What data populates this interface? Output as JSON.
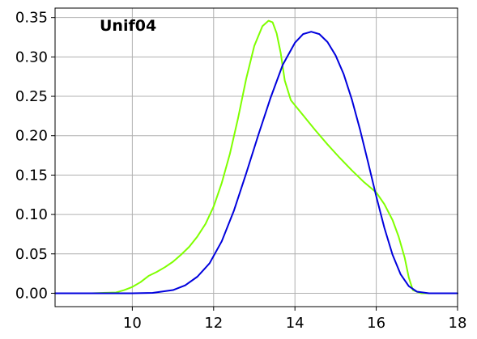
{
  "chart_data": {
    "type": "line",
    "title": "Unif04",
    "xlabel": "",
    "ylabel": "",
    "xlim": [
      8.1,
      18
    ],
    "ylim": [
      -0.017,
      0.362
    ],
    "x_ticks": [
      10,
      12,
      14,
      16,
      18
    ],
    "x_tick_labels": [
      "10",
      "12",
      "14",
      "16",
      "18"
    ],
    "y_ticks": [
      0.0,
      0.05,
      0.1,
      0.15,
      0.2,
      0.25,
      0.3,
      0.35
    ],
    "y_tick_labels": [
      "0.00",
      "0.05",
      "0.10",
      "0.15",
      "0.20",
      "0.25",
      "0.30",
      "0.35"
    ],
    "grid": true,
    "legend": "none",
    "series": [
      {
        "color": "#7fff00",
        "x": [
          8.1,
          9.0,
          9.6,
          9.8,
          10.0,
          10.2,
          10.4,
          10.6,
          10.8,
          11.0,
          11.2,
          11.4,
          11.6,
          11.8,
          12.0,
          12.2,
          12.4,
          12.6,
          12.8,
          13.0,
          13.2,
          13.35,
          13.45,
          13.55,
          13.65,
          13.75,
          13.9,
          14.2,
          14.5,
          14.8,
          15.1,
          15.4,
          15.7,
          16.0,
          16.2,
          16.4,
          16.55,
          16.7,
          16.8,
          16.9,
          17.1,
          18.0
        ],
        "y": [
          0.0,
          0.0,
          0.001,
          0.004,
          0.008,
          0.014,
          0.022,
          0.027,
          0.033,
          0.04,
          0.049,
          0.059,
          0.072,
          0.088,
          0.11,
          0.14,
          0.177,
          0.222,
          0.272,
          0.314,
          0.339,
          0.346,
          0.344,
          0.33,
          0.305,
          0.27,
          0.245,
          0.226,
          0.207,
          0.189,
          0.172,
          0.156,
          0.141,
          0.128,
          0.113,
          0.093,
          0.072,
          0.045,
          0.02,
          0.004,
          0.0,
          0.0
        ]
      },
      {
        "color": "#0000dd",
        "x": [
          8.1,
          10.0,
          10.5,
          11.0,
          11.3,
          11.6,
          11.9,
          12.2,
          12.5,
          12.8,
          13.1,
          13.4,
          13.7,
          14.0,
          14.2,
          14.4,
          14.6,
          14.8,
          15.0,
          15.2,
          15.4,
          15.6,
          15.8,
          16.0,
          16.2,
          16.4,
          16.6,
          16.8,
          17.0,
          17.3,
          18.0
        ],
        "y": [
          0.0,
          0.0,
          0.0005,
          0.004,
          0.01,
          0.021,
          0.038,
          0.066,
          0.105,
          0.152,
          0.201,
          0.248,
          0.29,
          0.318,
          0.329,
          0.332,
          0.329,
          0.319,
          0.302,
          0.278,
          0.246,
          0.208,
          0.166,
          0.123,
          0.083,
          0.049,
          0.024,
          0.009,
          0.002,
          0.0,
          0.0
        ]
      }
    ]
  }
}
